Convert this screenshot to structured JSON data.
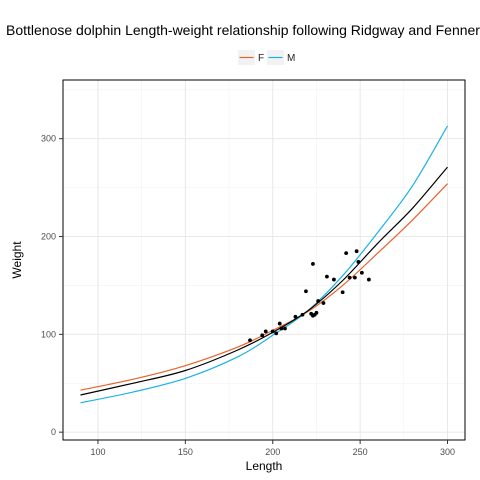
{
  "chart_data": {
    "type": "line",
    "title": "Bottlenose dolphin Length-weight relationship following Ridgway and Fenner",
    "xlabel": "Length",
    "ylabel": "Weight",
    "xlim": [
      80,
      310
    ],
    "ylim": [
      -8,
      360
    ],
    "x_ticks": [
      100,
      150,
      200,
      250,
      300
    ],
    "y_ticks": [
      0,
      100,
      200,
      300
    ],
    "grid": true,
    "legend_position": "top",
    "series": [
      {
        "name": "F",
        "color": "#e8622a",
        "kind": "curve",
        "points": [
          [
            90,
            43
          ],
          [
            120,
            54
          ],
          [
            150,
            68
          ],
          [
            180,
            87
          ],
          [
            200,
            104
          ],
          [
            220,
            123
          ],
          [
            240,
            150
          ],
          [
            260,
            183
          ],
          [
            280,
            217
          ],
          [
            300,
            254
          ]
        ]
      },
      {
        "name": "M",
        "color": "#1ab2e6",
        "kind": "curve",
        "points": [
          [
            90,
            30
          ],
          [
            120,
            41
          ],
          [
            150,
            55
          ],
          [
            180,
            77
          ],
          [
            200,
            99
          ],
          [
            220,
            124
          ],
          [
            240,
            160
          ],
          [
            260,
            204
          ],
          [
            280,
            252
          ],
          [
            300,
            313
          ]
        ]
      },
      {
        "name": "",
        "color": "#000000",
        "kind": "curve",
        "points": [
          [
            90,
            38
          ],
          [
            120,
            50
          ],
          [
            150,
            63
          ],
          [
            180,
            84
          ],
          [
            200,
            102
          ],
          [
            220,
            124
          ],
          [
            240,
            155
          ],
          [
            260,
            193
          ],
          [
            280,
            229
          ],
          [
            300,
            271
          ]
        ]
      }
    ],
    "observations": [
      [
        187,
        94
      ],
      [
        194,
        99
      ],
      [
        196,
        103
      ],
      [
        200,
        103
      ],
      [
        202,
        101
      ],
      [
        204,
        111
      ],
      [
        205,
        106
      ],
      [
        207,
        106
      ],
      [
        213,
        118
      ],
      [
        217,
        120
      ],
      [
        219,
        144
      ],
      [
        222,
        121
      ],
      [
        223,
        119
      ],
      [
        223,
        172
      ],
      [
        224,
        120
      ],
      [
        225,
        122
      ],
      [
        226,
        134
      ],
      [
        229,
        132
      ],
      [
        231,
        159
      ],
      [
        235,
        156
      ],
      [
        240,
        143
      ],
      [
        242,
        183
      ],
      [
        244,
        158
      ],
      [
        247,
        158
      ],
      [
        248,
        185
      ],
      [
        249,
        174
      ],
      [
        251,
        163
      ],
      [
        255,
        156
      ]
    ]
  }
}
